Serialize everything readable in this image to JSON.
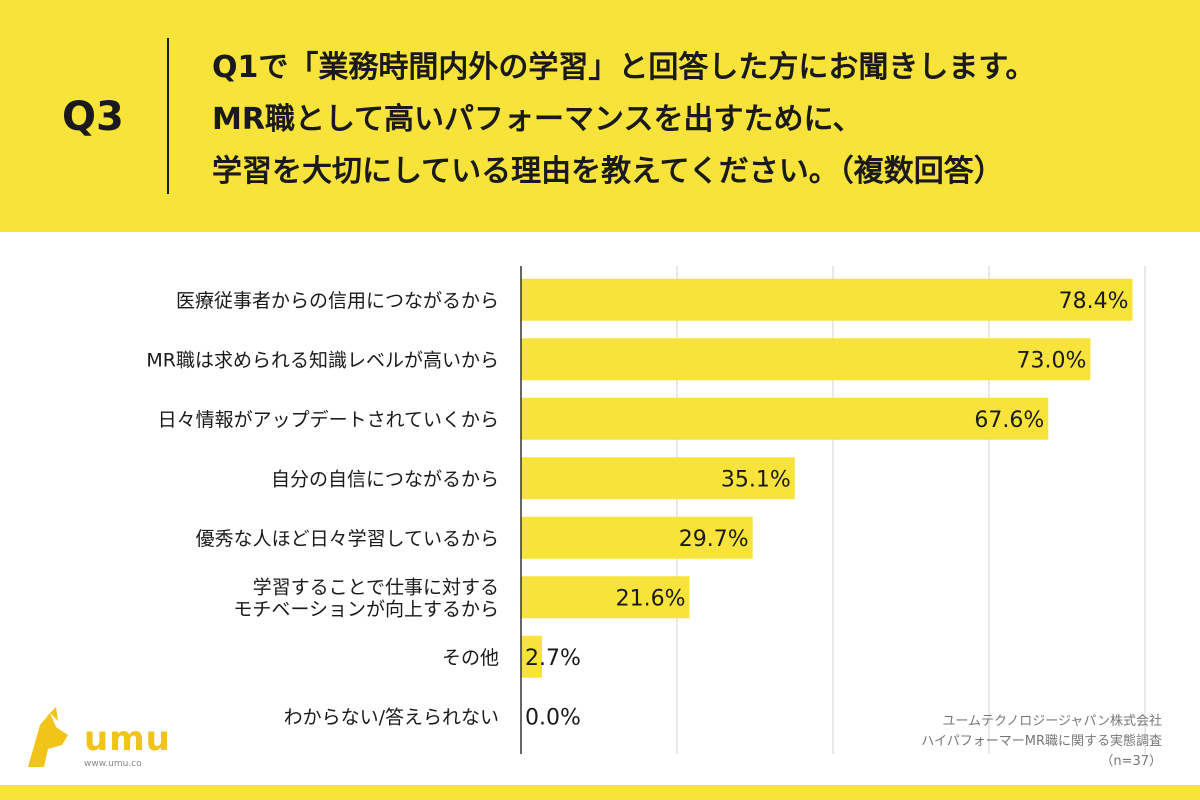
{
  "question": {
    "number": "Q3",
    "lines": [
      "Q1で「業務時間内外の学習」と回答した方にお聞きします。",
      "MR職として高いパフォーマンスを出すために、",
      "学習を大切にしている理由を教えてください。（複数回答）"
    ]
  },
  "logo": {
    "text": "umu",
    "url": "www.umu.co"
  },
  "source": {
    "lines": [
      "ユームテクノロジージャパン株式会社",
      "ハイパフォーマーMR職に関する実態調査",
      "（n=37）"
    ]
  },
  "chart_data": {
    "type": "bar",
    "orientation": "horizontal",
    "categories": [
      "医療従事者からの信用につながるから",
      "MR職は求められる知識レベルが高いから",
      "日々情報がアップデートされていくから",
      "自分の自信につながるから",
      "優秀な人ほど日々学習しているから",
      "学習することで仕事に対する\nモチベーションが向上するから",
      "その他",
      "わからない/答えられない"
    ],
    "values": [
      78.4,
      73.0,
      67.6,
      35.1,
      29.7,
      21.6,
      2.7,
      0.0
    ],
    "value_labels": [
      "78.4%",
      "73.0%",
      "67.6%",
      "35.1%",
      "29.7%",
      "21.6%",
      "2.7%",
      "0.0%"
    ],
    "xlim": [
      0,
      100
    ],
    "grid": true,
    "bar_color": "#f7e33a"
  }
}
